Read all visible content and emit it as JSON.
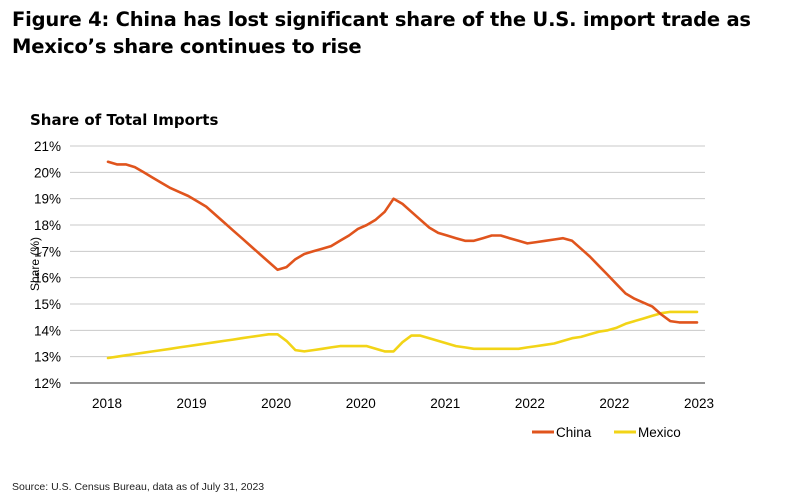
{
  "figure_title": "Figure 4: China has lost significant share of the U.S. import trade as Mexico’s share continues to rise",
  "source": "Source: U.S. Census Bureau, data as of July 31, 2023",
  "colors": {
    "China": "#e0541d",
    "Mexico": "#f2d417",
    "grid": "#c9c9c9",
    "axis": "#555555"
  },
  "chart_data": {
    "type": "line",
    "title": "Share of Total Imports",
    "xlabel": "",
    "ylabel": "Share (%)",
    "ylim": [
      12,
      21
    ],
    "yticks": [
      "12%",
      "13%",
      "14%",
      "15%",
      "16%",
      "17%",
      "18%",
      "19%",
      "20%",
      "21%"
    ],
    "xticks": [
      "2018",
      "2019",
      "2020",
      "2020",
      "2021",
      "2022",
      "2022",
      "2023"
    ],
    "x": [
      "2018-01",
      "2018-02",
      "2018-03",
      "2018-04",
      "2018-05",
      "2018-06",
      "2018-07",
      "2018-08",
      "2018-09",
      "2018-10",
      "2018-11",
      "2018-12",
      "2019-01",
      "2019-02",
      "2019-03",
      "2019-04",
      "2019-05",
      "2019-06",
      "2019-07",
      "2019-08",
      "2019-09",
      "2019-10",
      "2019-11",
      "2019-12",
      "2020-01",
      "2020-02",
      "2020-03",
      "2020-04",
      "2020-05",
      "2020-06",
      "2020-07",
      "2020-08",
      "2020-09",
      "2020-10",
      "2020-11",
      "2020-12",
      "2021-01",
      "2021-02",
      "2021-03",
      "2021-04",
      "2021-05",
      "2021-06",
      "2021-07",
      "2021-08",
      "2021-09",
      "2021-10",
      "2021-11",
      "2021-12",
      "2022-01",
      "2022-02",
      "2022-03",
      "2022-04",
      "2022-05",
      "2022-06",
      "2022-07",
      "2022-08",
      "2022-09",
      "2022-10",
      "2022-11",
      "2022-12",
      "2023-01",
      "2023-02",
      "2023-03",
      "2023-04",
      "2023-05",
      "2023-06",
      "2023-07"
    ],
    "series": [
      {
        "name": "China",
        "values": [
          20.4,
          20.3,
          20.3,
          20.2,
          20.0,
          19.8,
          19.6,
          19.4,
          19.25,
          19.1,
          18.9,
          18.7,
          18.4,
          18.1,
          17.8,
          17.5,
          17.2,
          16.9,
          16.6,
          16.3,
          16.4,
          16.7,
          16.9,
          17.0,
          17.1,
          17.2,
          17.4,
          17.6,
          17.85,
          18.0,
          18.2,
          18.5,
          19.0,
          18.8,
          18.5,
          18.2,
          17.9,
          17.7,
          17.6,
          17.5,
          17.4,
          17.4,
          17.5,
          17.6,
          17.6,
          17.5,
          17.4,
          17.3,
          17.35,
          17.4,
          17.45,
          17.5,
          17.4,
          17.1,
          16.8,
          16.45,
          16.1,
          15.75,
          15.4,
          15.2,
          15.05,
          14.9,
          14.6,
          14.35,
          14.3,
          14.3,
          14.3
        ],
        "colorKey": "China"
      },
      {
        "name": "Mexico",
        "values": [
          12.95,
          13.0,
          13.05,
          13.1,
          13.15,
          13.2,
          13.25,
          13.3,
          13.35,
          13.4,
          13.45,
          13.5,
          13.55,
          13.6,
          13.65,
          13.7,
          13.75,
          13.8,
          13.85,
          13.85,
          13.6,
          13.25,
          13.2,
          13.25,
          13.3,
          13.35,
          13.4,
          13.4,
          13.4,
          13.4,
          13.3,
          13.2,
          13.2,
          13.55,
          13.8,
          13.8,
          13.7,
          13.6,
          13.5,
          13.4,
          13.35,
          13.3,
          13.3,
          13.3,
          13.3,
          13.3,
          13.3,
          13.35,
          13.4,
          13.45,
          13.5,
          13.6,
          13.7,
          13.75,
          13.85,
          13.95,
          14.0,
          14.1,
          14.25,
          14.35,
          14.45,
          14.55,
          14.65,
          14.7,
          14.7,
          14.7,
          14.7
        ],
        "colorKey": "Mexico"
      }
    ],
    "legend": "bottom-right",
    "grid": true
  }
}
